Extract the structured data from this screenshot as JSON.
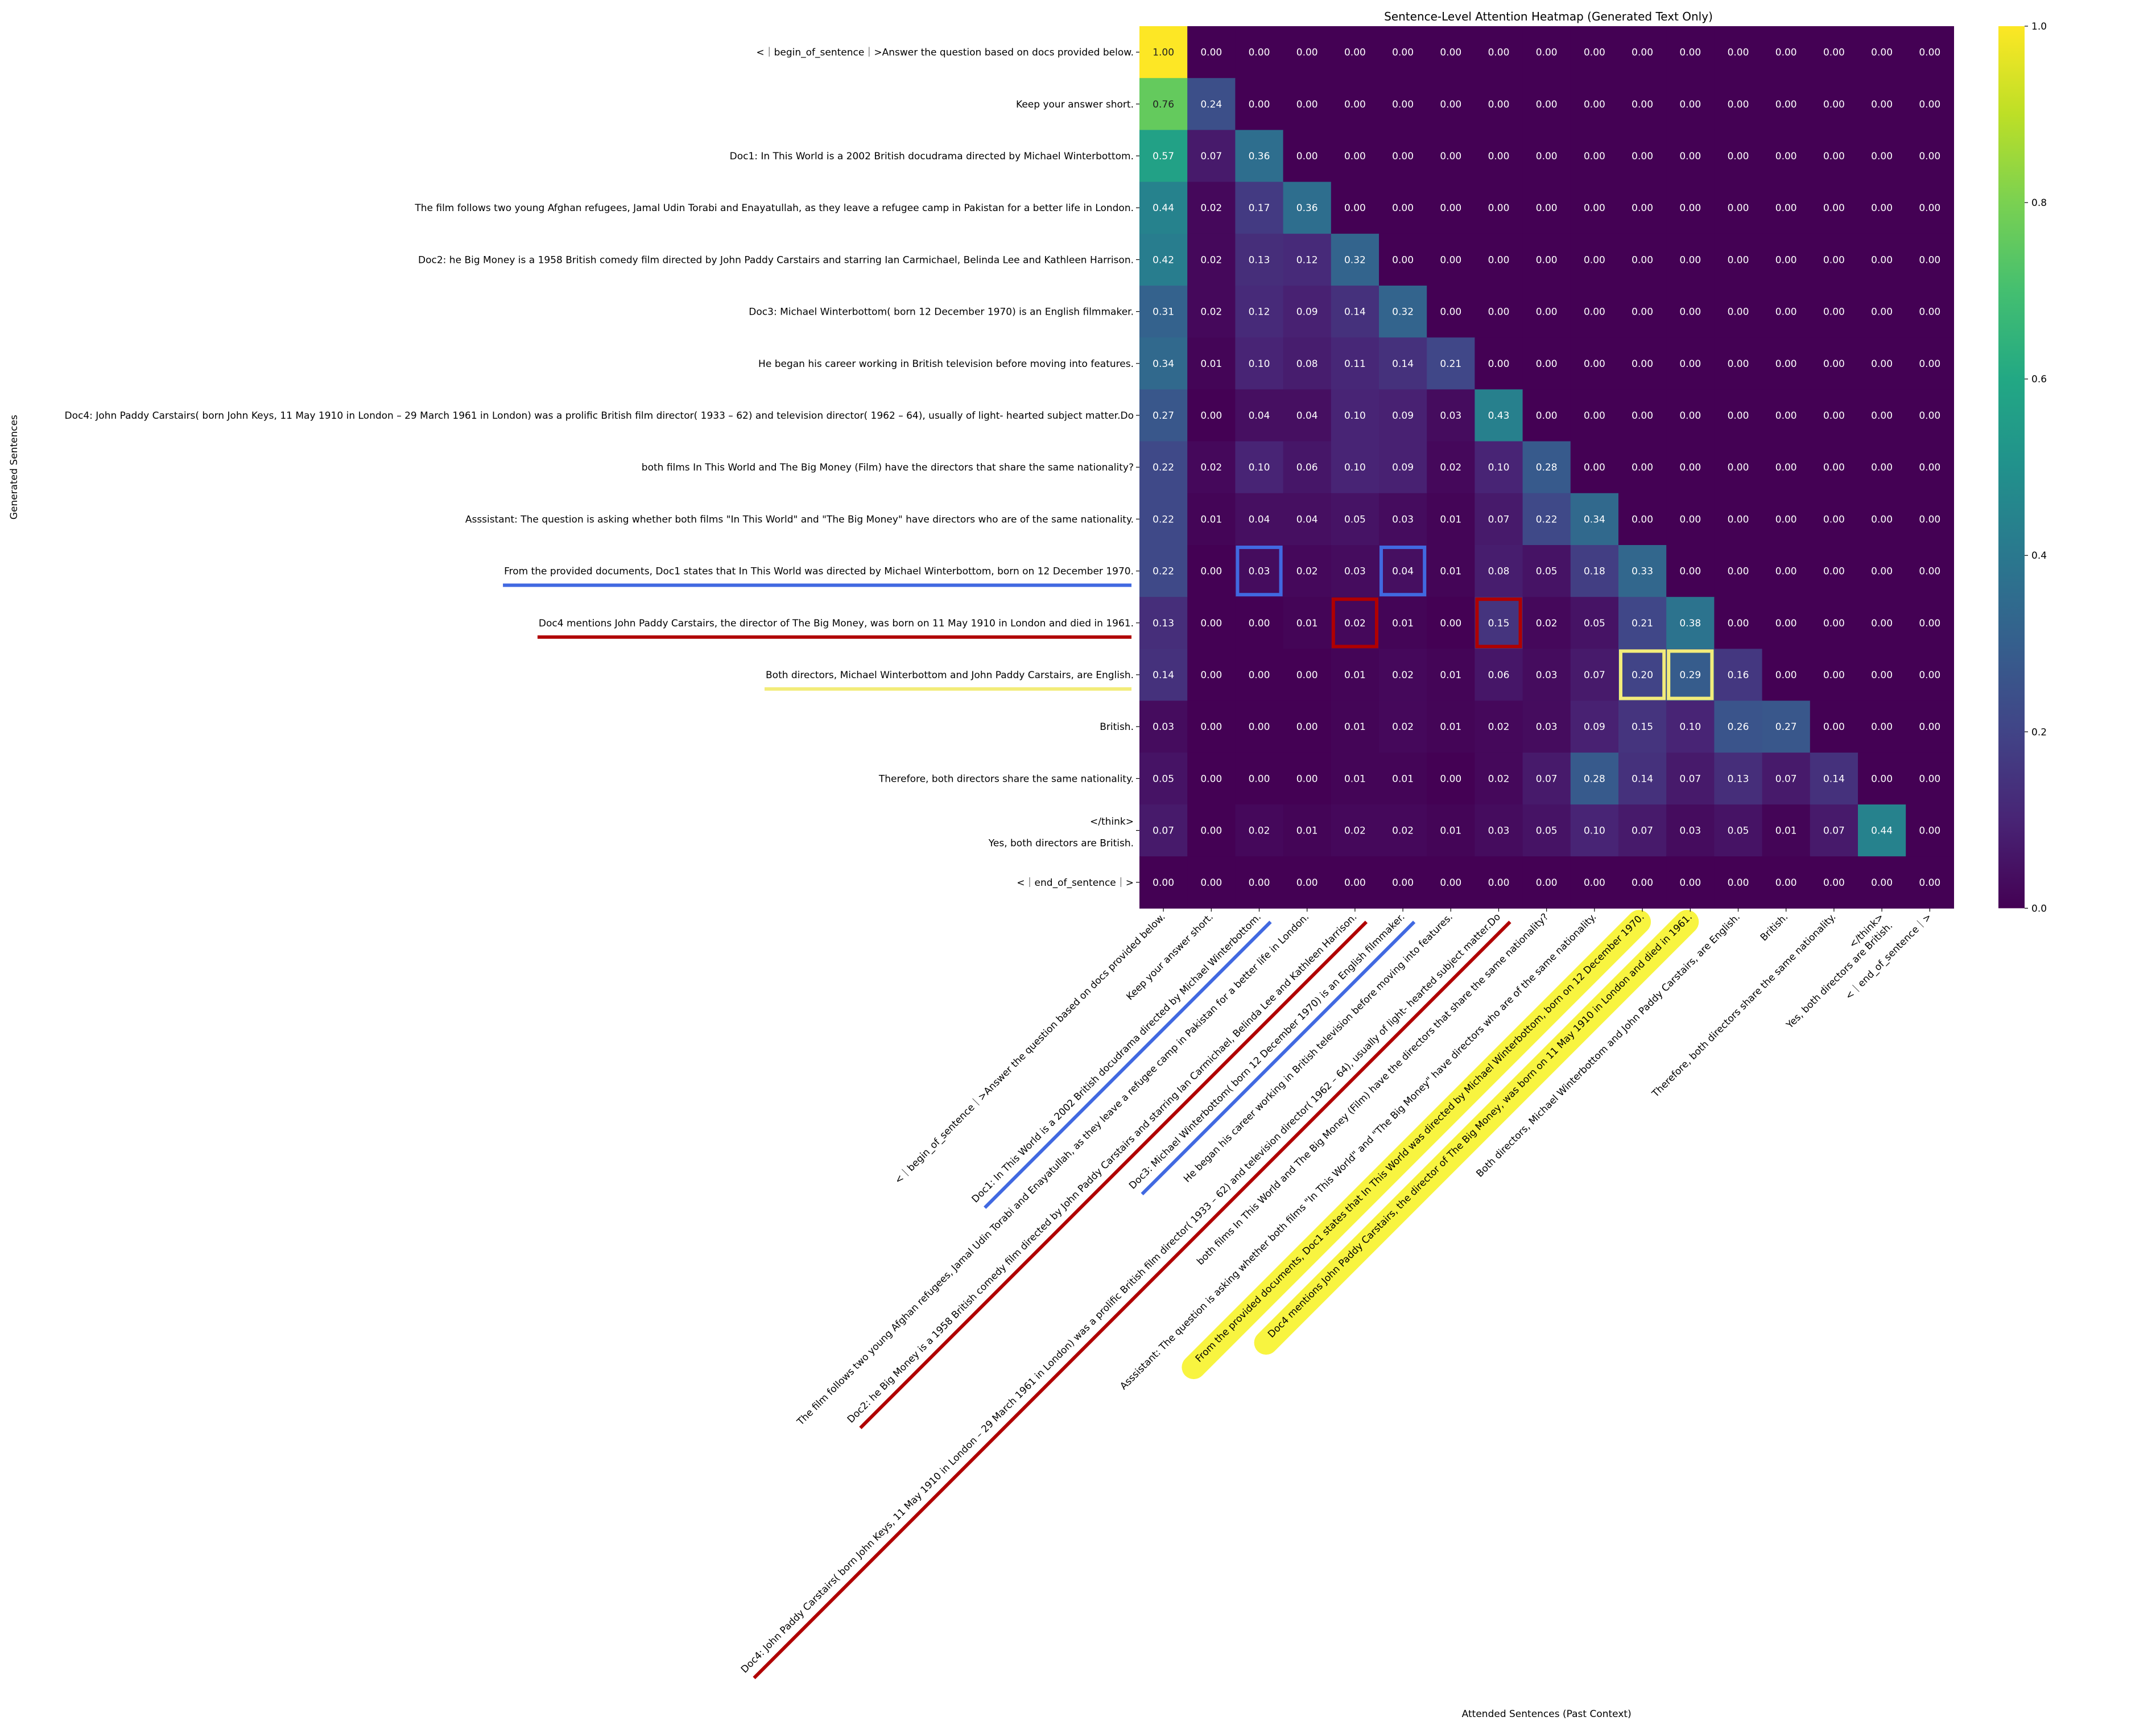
{
  "chart_data": {
    "type": "heatmap",
    "title": "Sentence-Level Attention Heatmap (Generated Text Only)",
    "xlabel": "Attended Sentences (Past Context)",
    "ylabel": "Generated Sentences",
    "row_labels": [
      "<｜begin_of_sentence｜>Answer the question based on docs provided below.",
      "Keep your answer short.",
      "Doc1: In This World is a 2002 British docudrama directed by Michael Winterbottom.",
      "The film follows two young Afghan refugees, Jamal Udin Torabi and Enayatullah, as they leave a refugee camp in Pakistan for a better life in London.",
      "Doc2: he Big Money is a 1958 British comedy film directed by John Paddy Carstairs and starring Ian Carmichael, Belinda Lee and Kathleen Harrison.",
      "Doc3: Michael Winterbottom( born 12 December 1970) is an English filmmaker.",
      "He began his career working in British television before moving into features.",
      "Doc4: John Paddy Carstairs( born John Keys, 11 May 1910 in London – 29 March 1961 in London) was a prolific British film director( 1933 – 62) and television director( 1962 – 64), usually of light- hearted subject matter.Do",
      "both films In This World and The Big Money (Film) have the directors that share the same nationality?",
      "Asssistant:  The question is asking whether both films \"In This World\" and \"The Big Money\" have directors who are of the same nationality.",
      "From the provided documents, Doc1 states that In This World was directed by Michael Winterbottom, born on 12 December 1970.",
      "Doc4 mentions John Paddy Carstairs, the director of The Big Money, was born on 11 May 1910 in London and died in 1961.",
      "Both directors, Michael Winterbottom and John Paddy Carstairs, are English.",
      "British.",
      "Therefore, both directors share the same nationality.",
      "</think>\nYes, both directors are British.",
      "<｜end_of_sentence｜>"
    ],
    "col_labels": [
      "<｜begin_of_sentence｜>Answer the question based on docs provided below.",
      "Keep your answer short.",
      "Doc1: In This World is a 2002 British docudrama directed by Michael Winterbottom.",
      "The film follows two young Afghan refugees, Jamal Udin Torabi and Enayatullah, as they leave a refugee camp in Pakistan for a better life in London.",
      "Doc2: he Big Money is a 1958 British comedy film directed by John Paddy Carstairs and starring Ian Carmichael, Belinda Lee and Kathleen Harrison.",
      "Doc3: Michael Winterbottom( born 12 December 1970) is an English filmmaker.",
      "He began his career working in British television before moving into features.",
      "Doc4: John Paddy Carstairs( born John Keys, 11 May 1910 in London – 29 March 1961 in London) was a prolific British film director( 1933 – 62) and television director( 1962 – 64), usually of light- hearted subject matter.Do",
      "both films In This World and The Big Money (Film) have the directors that share the same nationality?",
      "Asssistant:  The question is asking whether both films \"In This World\" and \"The Big Money\" have directors who are of the same nationality.",
      "From the provided documents, Doc1 states that In This World was directed by Michael Winterbottom, born on 12 December 1970.",
      "Doc4 mentions John Paddy Carstairs, the director of The Big Money, was born on 11 May 1910 in London and died in 1961.",
      "Both directors, Michael Winterbottom and John Paddy Carstairs, are English.",
      "British.",
      "Therefore, both directors share the same nationality.",
      "</think>\nYes, both directors are British.",
      "<｜end_of_sentence｜>"
    ],
    "values": [
      [
        1.0,
        0.0,
        0.0,
        0.0,
        0.0,
        0.0,
        0.0,
        0.0,
        0.0,
        0.0,
        0.0,
        0.0,
        0.0,
        0.0,
        0.0,
        0.0,
        0.0
      ],
      [
        0.76,
        0.24,
        0.0,
        0.0,
        0.0,
        0.0,
        0.0,
        0.0,
        0.0,
        0.0,
        0.0,
        0.0,
        0.0,
        0.0,
        0.0,
        0.0,
        0.0
      ],
      [
        0.57,
        0.07,
        0.36,
        0.0,
        0.0,
        0.0,
        0.0,
        0.0,
        0.0,
        0.0,
        0.0,
        0.0,
        0.0,
        0.0,
        0.0,
        0.0,
        0.0
      ],
      [
        0.44,
        0.02,
        0.17,
        0.36,
        0.0,
        0.0,
        0.0,
        0.0,
        0.0,
        0.0,
        0.0,
        0.0,
        0.0,
        0.0,
        0.0,
        0.0,
        0.0
      ],
      [
        0.42,
        0.02,
        0.13,
        0.12,
        0.32,
        0.0,
        0.0,
        0.0,
        0.0,
        0.0,
        0.0,
        0.0,
        0.0,
        0.0,
        0.0,
        0.0,
        0.0
      ],
      [
        0.31,
        0.02,
        0.12,
        0.09,
        0.14,
        0.32,
        0.0,
        0.0,
        0.0,
        0.0,
        0.0,
        0.0,
        0.0,
        0.0,
        0.0,
        0.0,
        0.0
      ],
      [
        0.34,
        0.01,
        0.1,
        0.08,
        0.11,
        0.14,
        0.21,
        0.0,
        0.0,
        0.0,
        0.0,
        0.0,
        0.0,
        0.0,
        0.0,
        0.0,
        0.0
      ],
      [
        0.27,
        0.0,
        0.04,
        0.04,
        0.1,
        0.09,
        0.03,
        0.43,
        0.0,
        0.0,
        0.0,
        0.0,
        0.0,
        0.0,
        0.0,
        0.0,
        0.0
      ],
      [
        0.22,
        0.02,
        0.1,
        0.06,
        0.1,
        0.09,
        0.02,
        0.1,
        0.28,
        0.0,
        0.0,
        0.0,
        0.0,
        0.0,
        0.0,
        0.0,
        0.0
      ],
      [
        0.22,
        0.01,
        0.04,
        0.04,
        0.05,
        0.03,
        0.01,
        0.07,
        0.22,
        0.34,
        0.0,
        0.0,
        0.0,
        0.0,
        0.0,
        0.0,
        0.0
      ],
      [
        0.22,
        0.0,
        0.03,
        0.02,
        0.03,
        0.04,
        0.01,
        0.08,
        0.05,
        0.18,
        0.33,
        0.0,
        0.0,
        0.0,
        0.0,
        0.0,
        0.0
      ],
      [
        0.13,
        0.0,
        0.0,
        0.01,
        0.02,
        0.01,
        0.0,
        0.15,
        0.02,
        0.05,
        0.21,
        0.38,
        0.0,
        0.0,
        0.0,
        0.0,
        0.0
      ],
      [
        0.14,
        0.0,
        0.0,
        0.0,
        0.01,
        0.02,
        0.01,
        0.06,
        0.03,
        0.07,
        0.2,
        0.29,
        0.16,
        0.0,
        0.0,
        0.0,
        0.0
      ],
      [
        0.03,
        0.0,
        0.0,
        0.0,
        0.01,
        0.02,
        0.01,
        0.02,
        0.03,
        0.09,
        0.15,
        0.1,
        0.26,
        0.27,
        0.0,
        0.0,
        0.0
      ],
      [
        0.05,
        0.0,
        0.0,
        0.0,
        0.01,
        0.01,
        0.0,
        0.02,
        0.07,
        0.28,
        0.14,
        0.07,
        0.13,
        0.07,
        0.14,
        0.0,
        0.0
      ],
      [
        0.07,
        0.0,
        0.02,
        0.01,
        0.02,
        0.02,
        0.01,
        0.03,
        0.05,
        0.1,
        0.07,
        0.03,
        0.05,
        0.01,
        0.07,
        0.44,
        0.0
      ],
      [
        0.0,
        0.0,
        0.0,
        0.0,
        0.0,
        0.0,
        0.0,
        0.0,
        0.0,
        0.0,
        0.0,
        0.0,
        0.0,
        0.0,
        0.0,
        0.0,
        0.0
      ]
    ],
    "colormap": "viridis",
    "vmin": 0.0,
    "vmax": 1.0,
    "colorbar_ticks": [
      "0.0",
      "0.2",
      "0.4",
      "0.6",
      "0.8",
      "1.0"
    ],
    "grid": false,
    "annotations": {
      "cell_boxes": [
        {
          "row": 10,
          "col": 2,
          "color": "#4169e1"
        },
        {
          "row": 10,
          "col": 5,
          "color": "#4169e1"
        },
        {
          "row": 11,
          "col": 4,
          "color": "#b00000"
        },
        {
          "row": 11,
          "col": 7,
          "color": "#b00000"
        },
        {
          "row": 12,
          "col": 10,
          "color": "#f2ec7a"
        },
        {
          "row": 12,
          "col": 11,
          "color": "#f2ec7a"
        }
      ],
      "row_underlines": [
        {
          "row": 10,
          "color": "#4169e1"
        },
        {
          "row": 11,
          "color": "#b00000"
        },
        {
          "row": 12,
          "color": "#f2ec7a"
        }
      ],
      "col_underlines": [
        {
          "col": 2,
          "color": "#4169e1"
        },
        {
          "col": 5,
          "color": "#4169e1"
        },
        {
          "col": 4,
          "color": "#b00000"
        },
        {
          "col": 7,
          "color": "#b00000"
        }
      ],
      "col_highlights": [
        {
          "col": 10,
          "color": "#f5f000"
        },
        {
          "col": 11,
          "color": "#f5f000"
        }
      ]
    }
  }
}
